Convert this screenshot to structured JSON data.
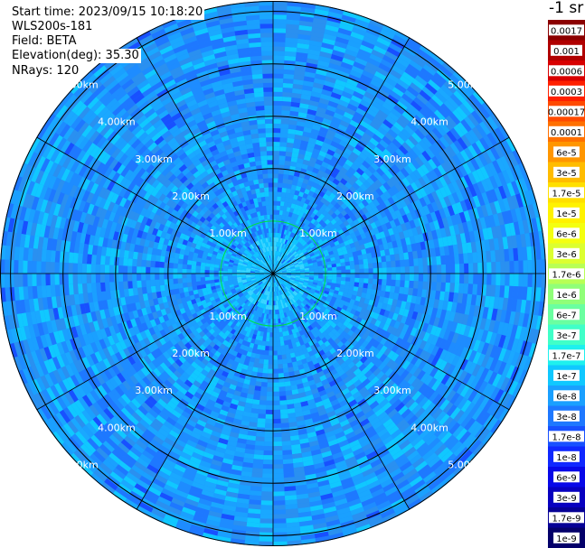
{
  "info": {
    "start_time": "Start time: 2023/09/15 10:18:20",
    "device": "WLS200s-181",
    "field": "Field: BETA",
    "elevation": "Elevation(deg): 35.30",
    "nrays": "NRays: 120"
  },
  "chart_data": {
    "type": "heatmap",
    "projection": "polar (PPI scan)",
    "num_rays": 120,
    "elevation_deg": 35.3,
    "range_rings_km": [
      1.0,
      2.0,
      3.0,
      4.0,
      5.0
    ],
    "ring_labels": [
      "1.00km",
      "2.00km",
      "3.00km",
      "4.00km",
      "5.00km"
    ],
    "radial_spokes_deg": [
      0,
      30,
      60,
      90,
      120,
      150,
      180,
      210,
      240,
      270,
      300,
      330
    ],
    "max_range_km": 5.2,
    "colorbar": {
      "title": "-1 sr",
      "scale": "log",
      "ticks": [
        "0.0017",
        "0.001",
        "0.0006",
        "0.0003",
        "0.00017",
        "0.0001",
        "6e-5",
        "3e-5",
        "1.7e-5",
        "1e-5",
        "6e-6",
        "3e-6",
        "1.7e-6",
        "1e-6",
        "6e-7",
        "3e-7",
        "1.7e-7",
        "1e-7",
        "6e-8",
        "3e-8",
        "1.7e-8",
        "1e-8",
        "6e-9",
        "3e-9",
        "1.7e-9",
        "1e-9"
      ],
      "colors": [
        "#8b0000",
        "#b00000",
        "#d80000",
        "#ff2000",
        "#ff4a00",
        "#ff7000",
        "#ff9600",
        "#ffbc00",
        "#ffdf00",
        "#fff200",
        "#f4ff10",
        "#dcff30",
        "#b8ff55",
        "#90ff78",
        "#6affa0",
        "#40ffc8",
        "#1ef0ee",
        "#10c8ff",
        "#1aa0ff",
        "#1e78ff",
        "#1850ff",
        "#1028ff",
        "#0808e8",
        "#0800c0",
        "#060096",
        "#04006a"
      ]
    },
    "typical_value_range": [
      "3e-8",
      "1.7e-7"
    ]
  }
}
